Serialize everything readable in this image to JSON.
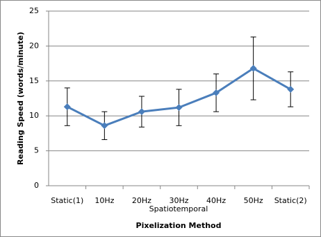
{
  "chart_data": {
    "type": "line",
    "categories": [
      "Static(1)",
      "10Hz",
      "20Hz",
      "30Hz",
      "40Hz",
      "50Hz",
      "Static(2)"
    ],
    "series": [
      {
        "color": "#4a7ebb",
        "values": [
          11.3,
          8.6,
          10.6,
          11.2,
          13.3,
          16.8,
          13.8
        ],
        "errors": [
          2.7,
          2.0,
          2.2,
          2.6,
          2.7,
          4.5,
          2.5
        ]
      }
    ],
    "annotation": "Spatiotemporal",
    "x_label": "Pixelization Method",
    "y_label": "Reading Speed (words/minute)",
    "ylim": [
      0,
      25
    ],
    "yticks": [
      0,
      5,
      10,
      15,
      20,
      25
    ],
    "grid": true
  }
}
